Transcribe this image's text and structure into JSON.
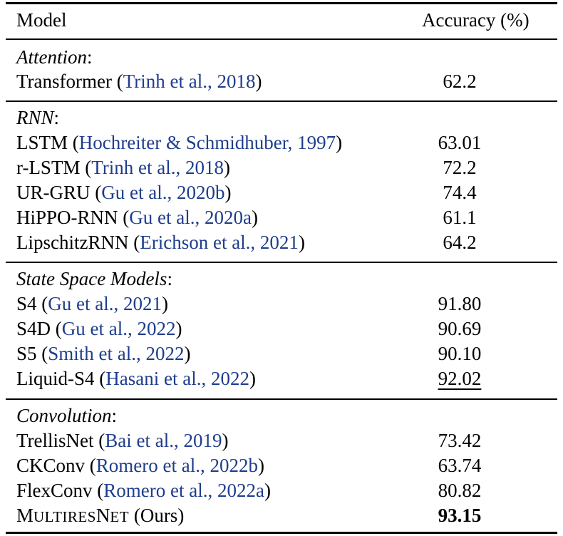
{
  "header": {
    "model": "Model",
    "accuracy": "Accuracy (%)"
  },
  "sections": [
    {
      "label": "Attention",
      "rows": [
        {
          "model": "Transformer",
          "cite": "Trinh et al., 2018",
          "accuracy": "62.2"
        }
      ]
    },
    {
      "label": "RNN",
      "rows": [
        {
          "model": "LSTM",
          "cite": "Hochreiter & Schmidhuber, 1997",
          "accuracy": "63.01"
        },
        {
          "model": "r-LSTM",
          "cite": "Trinh et al., 2018",
          "accuracy": "72.2"
        },
        {
          "model": "UR-GRU",
          "cite": "Gu et al., 2020b",
          "accuracy": "74.4"
        },
        {
          "model": "HiPPO-RNN",
          "cite": "Gu et al., 2020a",
          "accuracy": "61.1"
        },
        {
          "model": "LipschitzRNN",
          "cite": "Erichson et al., 2021",
          "accuracy": "64.2"
        }
      ]
    },
    {
      "label": "State Space Models",
      "rows": [
        {
          "model": "S4",
          "cite": "Gu et al., 2021",
          "accuracy": "91.80"
        },
        {
          "model": "S4D",
          "cite": "Gu et al., 2022",
          "accuracy": "90.69"
        },
        {
          "model": "S5",
          "cite": "Smith et al., 2022",
          "accuracy": "90.10"
        },
        {
          "model": "Liquid-S4",
          "cite": "Hasani et al., 2022",
          "accuracy": "92.02"
        }
      ]
    },
    {
      "label": "Convolution",
      "rows": [
        {
          "model": "TrellisNet",
          "cite": "Bai et al., 2019",
          "accuracy": "73.42"
        },
        {
          "model": "CKConv",
          "cite": "Romero et al., 2022b",
          "accuracy": "63.74"
        },
        {
          "model": "FlexConv",
          "cite": "Romero et al., 2022a",
          "accuracy": "80.82"
        }
      ]
    }
  ],
  "ours": {
    "name_parts": [
      "M",
      "ULTIRES",
      "N",
      "ET"
    ],
    "suffix": "(Ours)",
    "accuracy": "93.15"
  }
}
